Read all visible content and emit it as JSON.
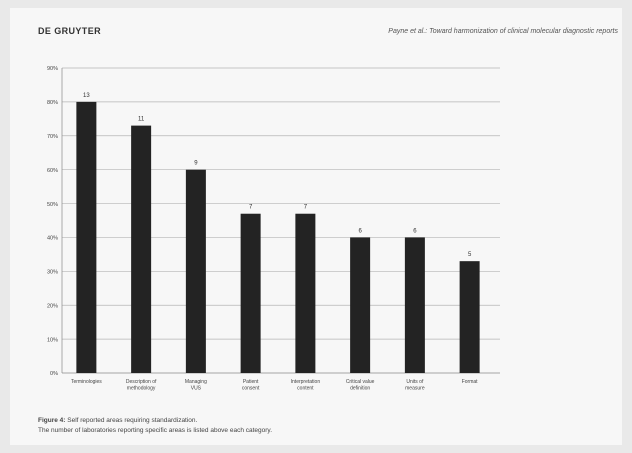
{
  "header": {
    "publisher": "DE GRUYTER",
    "running_head": "Payne et al.: Toward harmonization of clinical molecular diagnostic reports"
  },
  "caption": {
    "label": "Figure 4:",
    "title": "Self reported areas requiring standardization.",
    "note": "The number of laboratories reporting specific areas is listed above each category."
  },
  "chart_data": {
    "type": "bar",
    "categories": [
      "Terminologies",
      "Description of methodology",
      "Managing VUS",
      "Patient consent",
      "Interpretation content",
      "Critical value definition",
      "Units of measure",
      "Format"
    ],
    "values": [
      80,
      73,
      60,
      47,
      47,
      40,
      40,
      33
    ],
    "data_labels": [
      "13",
      "11",
      "9",
      "7",
      "7",
      "6",
      "6",
      "5"
    ],
    "y_tick_labels": [
      "0%",
      "10%",
      "20%",
      "30%",
      "40%",
      "50%",
      "60%",
      "70%",
      "80%",
      "90%"
    ],
    "ylim": [
      0,
      90
    ],
    "xlabel": "",
    "ylabel": "",
    "grid": true,
    "bar_color": "#232323",
    "grid_color": "#b5b5b5"
  }
}
